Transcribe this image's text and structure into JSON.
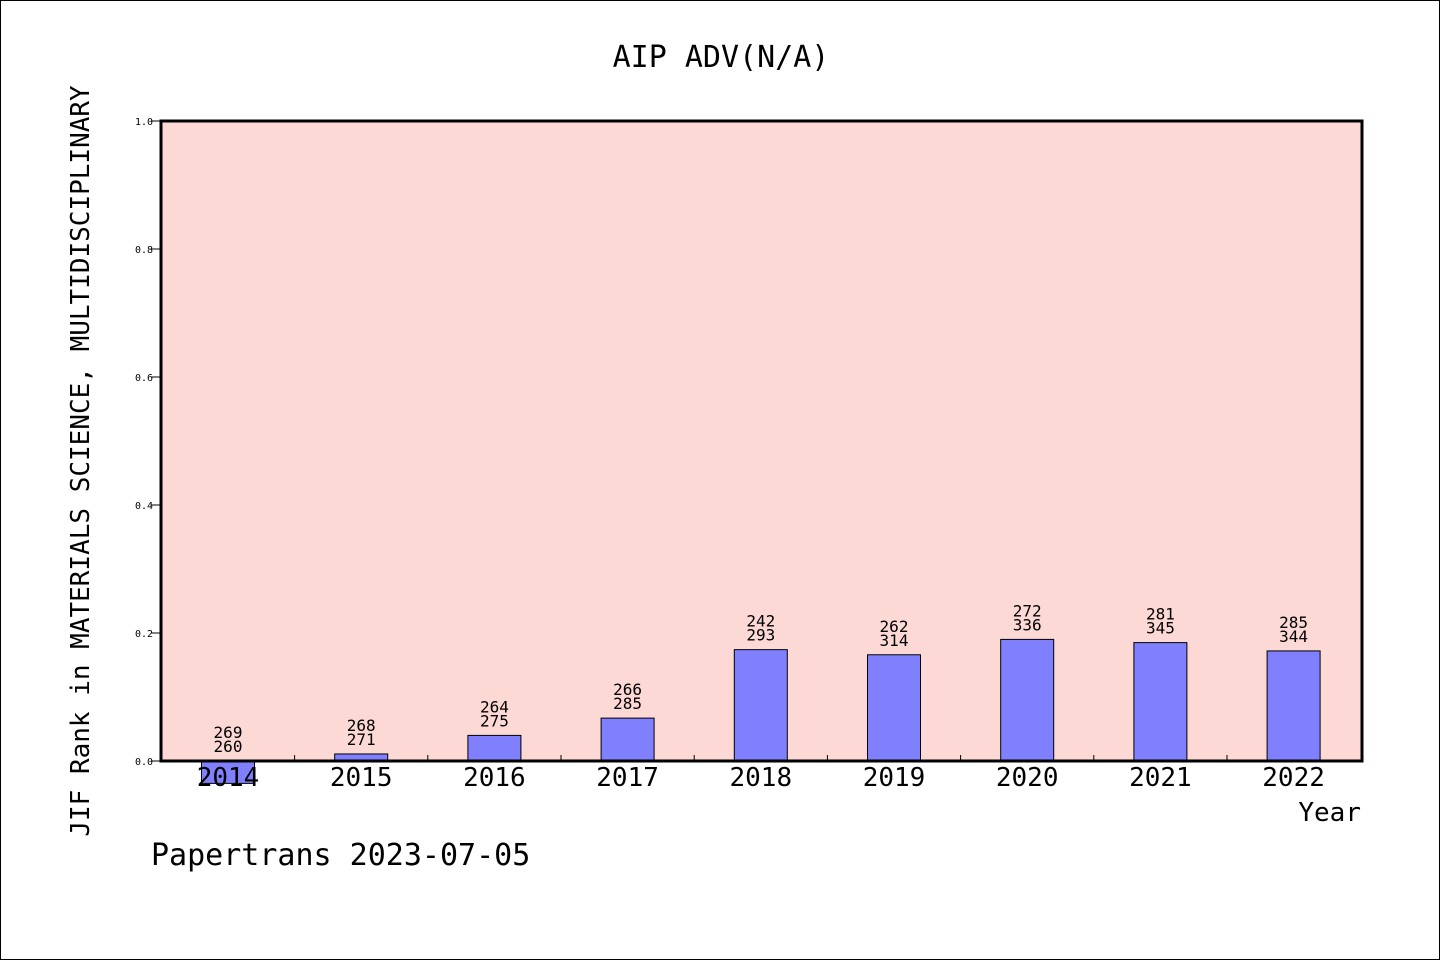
{
  "chart_data": {
    "type": "bar",
    "title": "AIP ADV(N/A)",
    "xlabel": "Year",
    "ylabel": "JIF Rank in MATERIALS SCIENCE, MULTIDISCIPLINARY",
    "ylim": [
      0,
      1.0
    ],
    "yticks": [
      "0.0",
      "0.2",
      "0.4",
      "0.6",
      "0.8",
      "1.0"
    ],
    "grid": false,
    "categories": [
      "2014",
      "2015",
      "2016",
      "2017",
      "2018",
      "2019",
      "2020",
      "2021",
      "2022"
    ],
    "values": [
      -0.035,
      0.011,
      0.04,
      0.067,
      0.174,
      0.166,
      0.19,
      0.185,
      0.172
    ],
    "rank_labels": [
      "269",
      "268",
      "264",
      "266",
      "242",
      "262",
      "272",
      "281",
      "285"
    ],
    "total_labels": [
      "260",
      "271",
      "275",
      "285",
      "293",
      "314",
      "336",
      "345",
      "344"
    ],
    "colors": {
      "plot_background": "#fdd9d6",
      "bar_fill": "#8080ff",
      "bar_stroke": "#000000"
    }
  },
  "footer": {
    "text": "Papertrans 2023-07-05"
  }
}
